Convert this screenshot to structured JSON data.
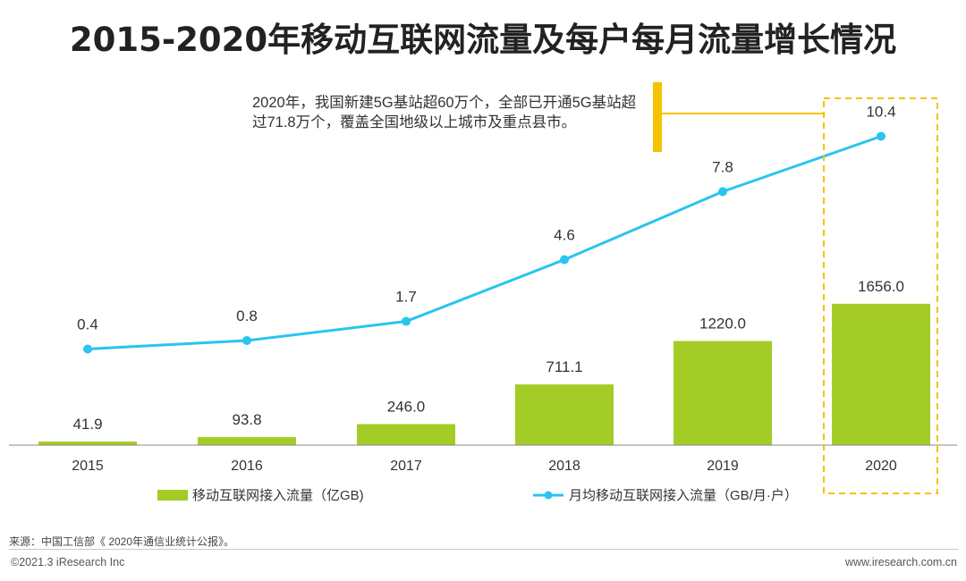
{
  "title": "2015-2020年移动互联网流量及每户每月流量增长情况",
  "annotation": "2020年，我国新建5G基站超60万个，全部已开通5G基站超过71.8万个，覆盖全国地级以上城市及重点县市。",
  "source": "来源：中国工信部《 2020年通信业统计公报》。",
  "copyright": "©2021.3 iResearch Inc",
  "website": "www.iresearch.com.cn",
  "colors": {
    "bar": "#a4cc26",
    "line": "#29c4f0",
    "highlight": "#f5c200",
    "axis": "#888888"
  },
  "chart_data": {
    "type": "bar+line",
    "categories": [
      "2015",
      "2016",
      "2017",
      "2018",
      "2019",
      "2020"
    ],
    "series": [
      {
        "name": "移动互联网接入流量（亿GB)",
        "type": "bar",
        "values": [
          41.9,
          93.8,
          246.0,
          711.1,
          1220.0,
          1656.0
        ],
        "labels": [
          "41.9",
          "93.8",
          "246.0",
          "711.1",
          "1220.0",
          "1656.0"
        ]
      },
      {
        "name": "月均移动互联网接入流量（GB/月·户）",
        "type": "line",
        "values": [
          0.4,
          0.8,
          1.7,
          4.6,
          7.8,
          10.4
        ],
        "labels": [
          "0.4",
          "0.8",
          "1.7",
          "4.6",
          "7.8",
          "10.4"
        ]
      }
    ],
    "highlight_category": "2020"
  }
}
